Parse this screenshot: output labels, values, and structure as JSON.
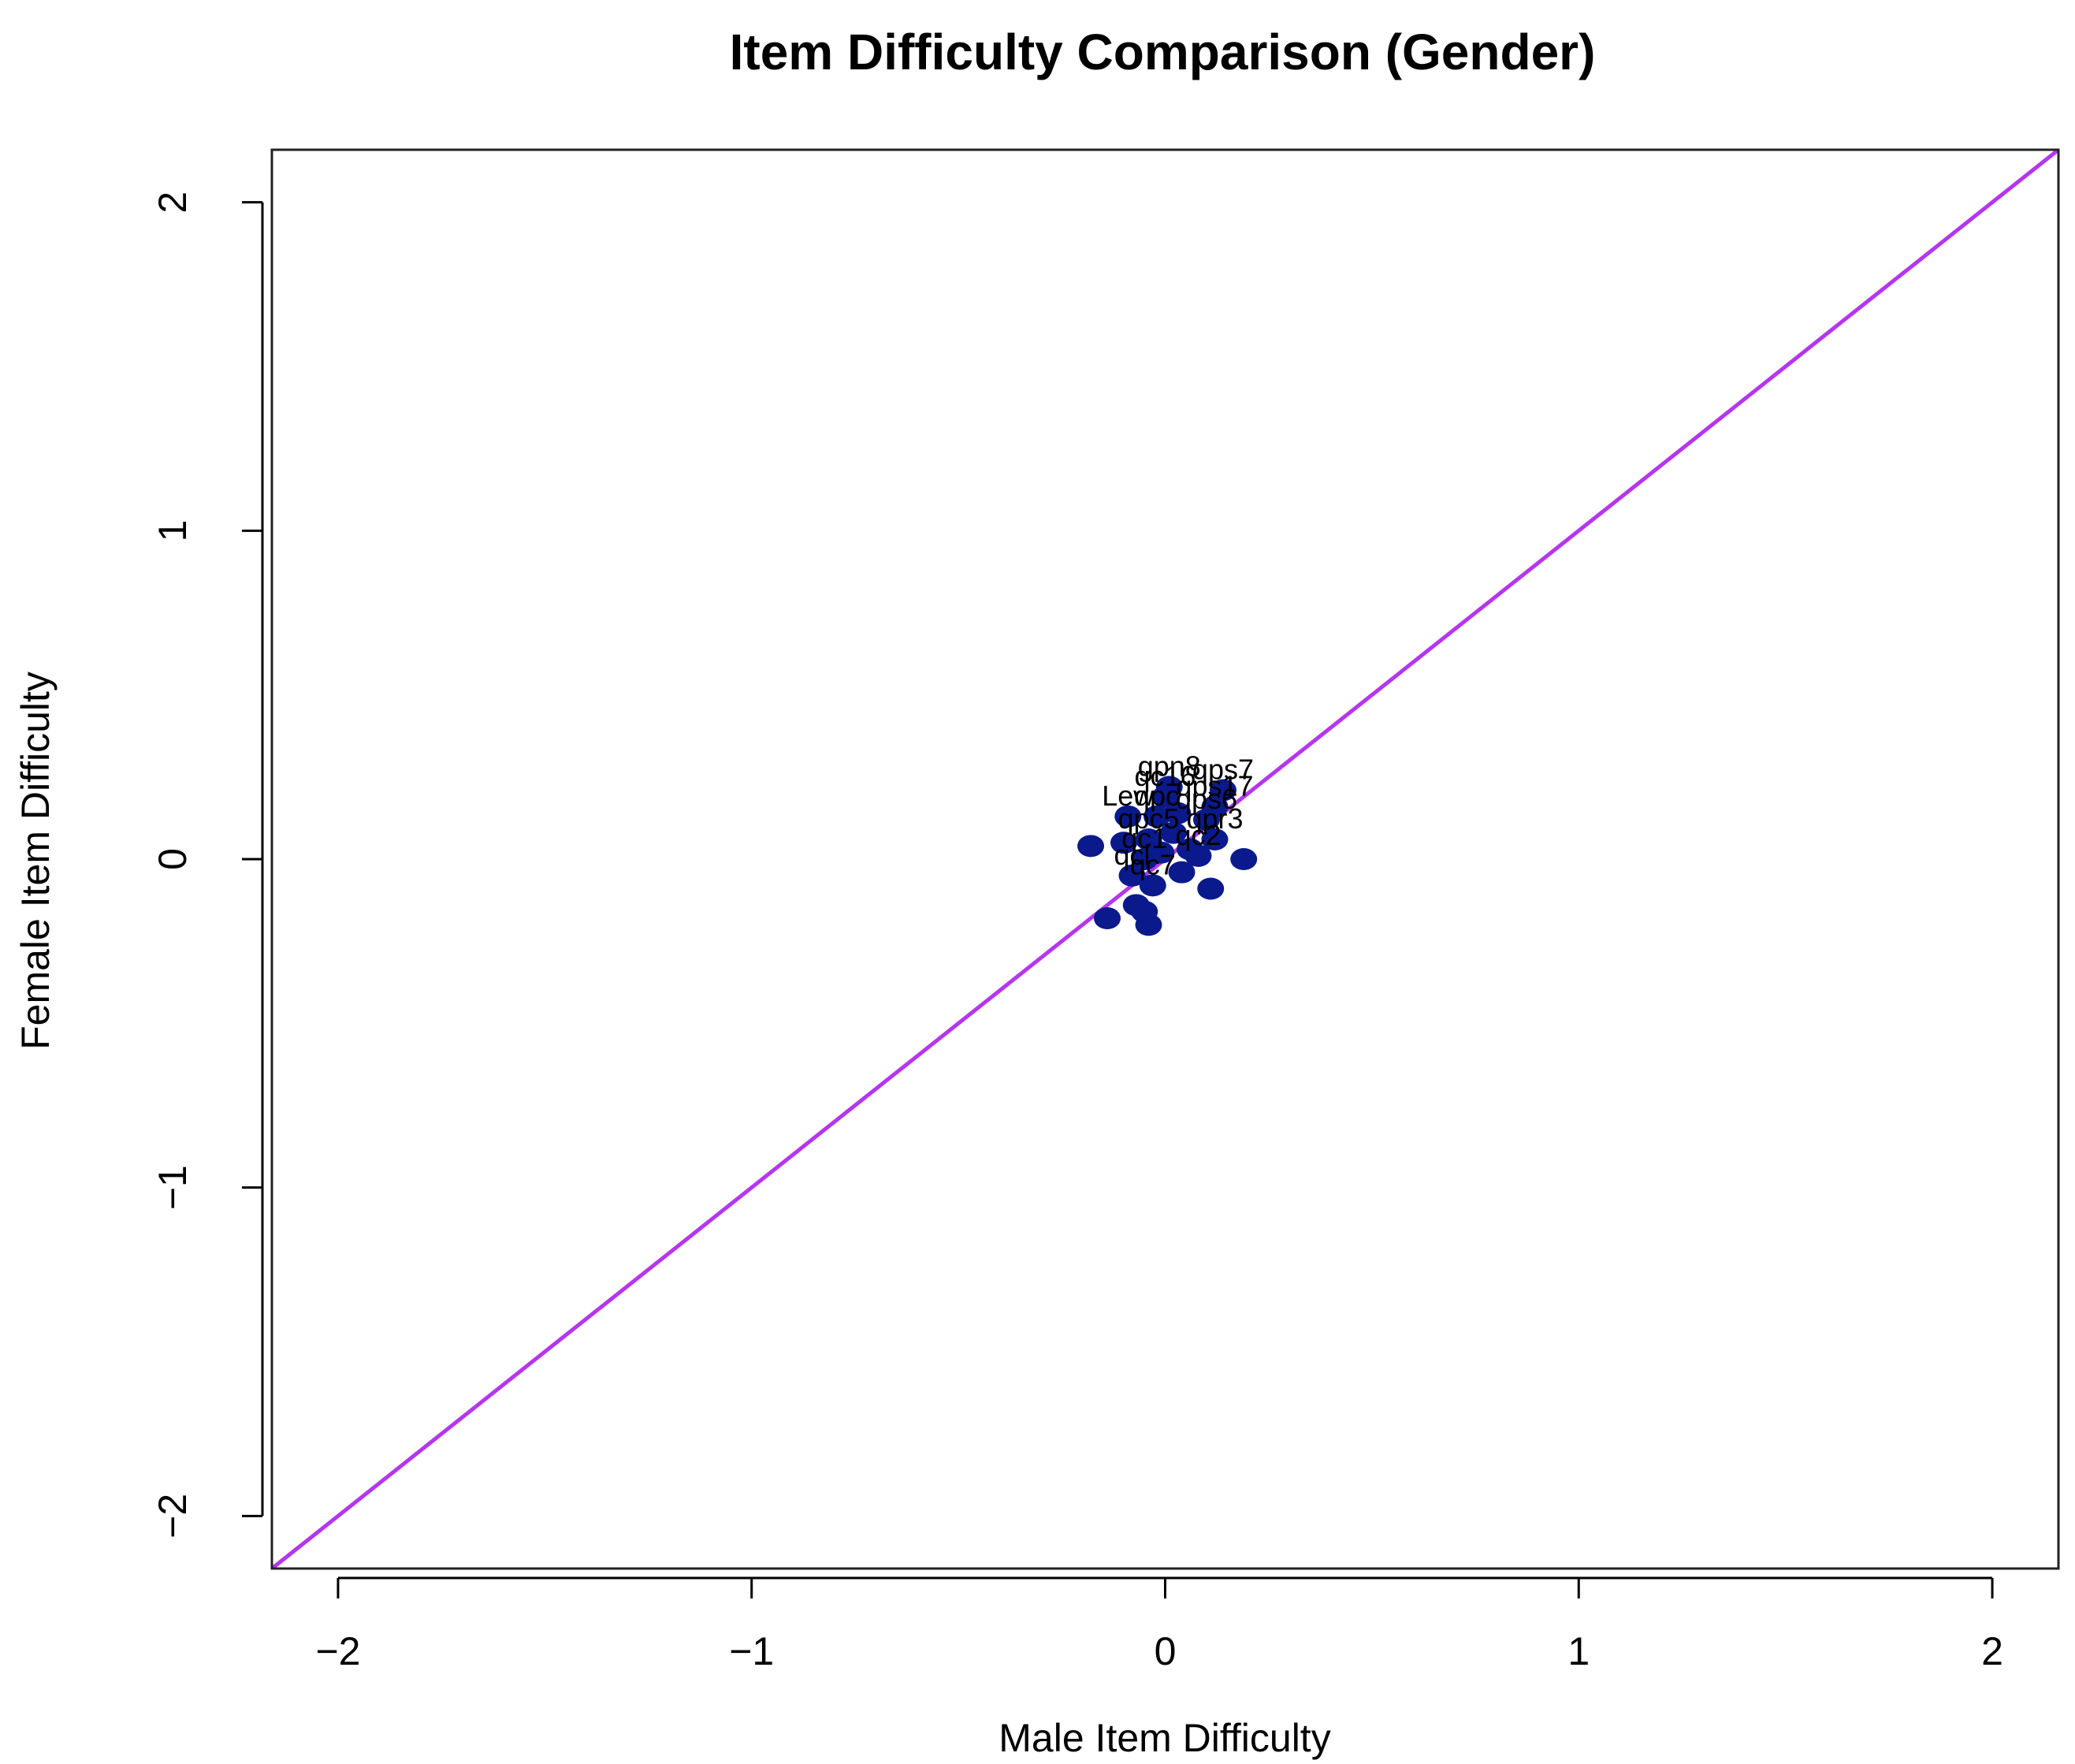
{
  "chart_data": {
    "type": "scatter",
    "title": "Item Difficulty Comparison (Gender)",
    "xlabel": "Male Item Difficulty",
    "ylabel": "Female Item Difficulty",
    "xlim": [
      -2.16,
      2.16
    ],
    "ylim": [
      -2.16,
      2.16
    ],
    "xticks": [
      -2,
      -1,
      0,
      1,
      2
    ],
    "yticks": [
      -2,
      -1,
      0,
      1,
      2
    ],
    "xtick_labels": [
      "−2",
      "−1",
      "0",
      "1",
      "2"
    ],
    "ytick_labels": [
      "−2",
      "−1",
      "0",
      "1",
      "2"
    ],
    "grid": false,
    "reference_line": {
      "type": "identity",
      "color": "#b536ef"
    },
    "point_color": "#0a1a8c",
    "points": [
      {
        "x": 0.14,
        "y": 0.21,
        "label": "qps7"
      },
      {
        "x": 0.01,
        "y": 0.22,
        "label": "gpn8"
      },
      {
        "x": 0.0,
        "y": 0.19,
        "label": "qc16"
      },
      {
        "x": 0.12,
        "y": 0.16,
        "label": "qps17"
      },
      {
        "x": 0.1,
        "y": 0.12,
        "label": "qps6"
      },
      {
        "x": -0.09,
        "y": 0.13,
        "label": "Lew"
      },
      {
        "x": -0.02,
        "y": 0.13,
        "label": "qpc"
      },
      {
        "x": 0.12,
        "y": 0.06,
        "label": "qpr3"
      },
      {
        "x": -0.04,
        "y": 0.06,
        "label": "qpc5"
      },
      {
        "x": 0.08,
        "y": 0.01,
        "label": "qc2"
      },
      {
        "x": -0.05,
        "y": 0.0,
        "label": "qc1"
      },
      {
        "x": -0.08,
        "y": -0.05,
        "label": "qcl"
      },
      {
        "x": -0.03,
        "y": -0.08,
        "label": "qc7"
      },
      {
        "x": -0.18,
        "y": 0.04,
        "label": ""
      },
      {
        "x": -0.1,
        "y": 0.05,
        "label": ""
      },
      {
        "x": 0.06,
        "y": 0.03,
        "label": ""
      },
      {
        "x": 0.19,
        "y": 0.0,
        "label": ""
      },
      {
        "x": 0.04,
        "y": -0.04,
        "label": ""
      },
      {
        "x": 0.11,
        "y": -0.09,
        "label": ""
      },
      {
        "x": -0.07,
        "y": -0.14,
        "label": ""
      },
      {
        "x": -0.05,
        "y": -0.16,
        "label": ""
      },
      {
        "x": -0.14,
        "y": -0.18,
        "label": ""
      },
      {
        "x": -0.04,
        "y": -0.2,
        "label": ""
      },
      {
        "x": 0.02,
        "y": 0.08,
        "label": ""
      },
      {
        "x": -0.01,
        "y": 0.02,
        "label": ""
      },
      {
        "x": 0.03,
        "y": 0.14,
        "label": ""
      }
    ]
  }
}
